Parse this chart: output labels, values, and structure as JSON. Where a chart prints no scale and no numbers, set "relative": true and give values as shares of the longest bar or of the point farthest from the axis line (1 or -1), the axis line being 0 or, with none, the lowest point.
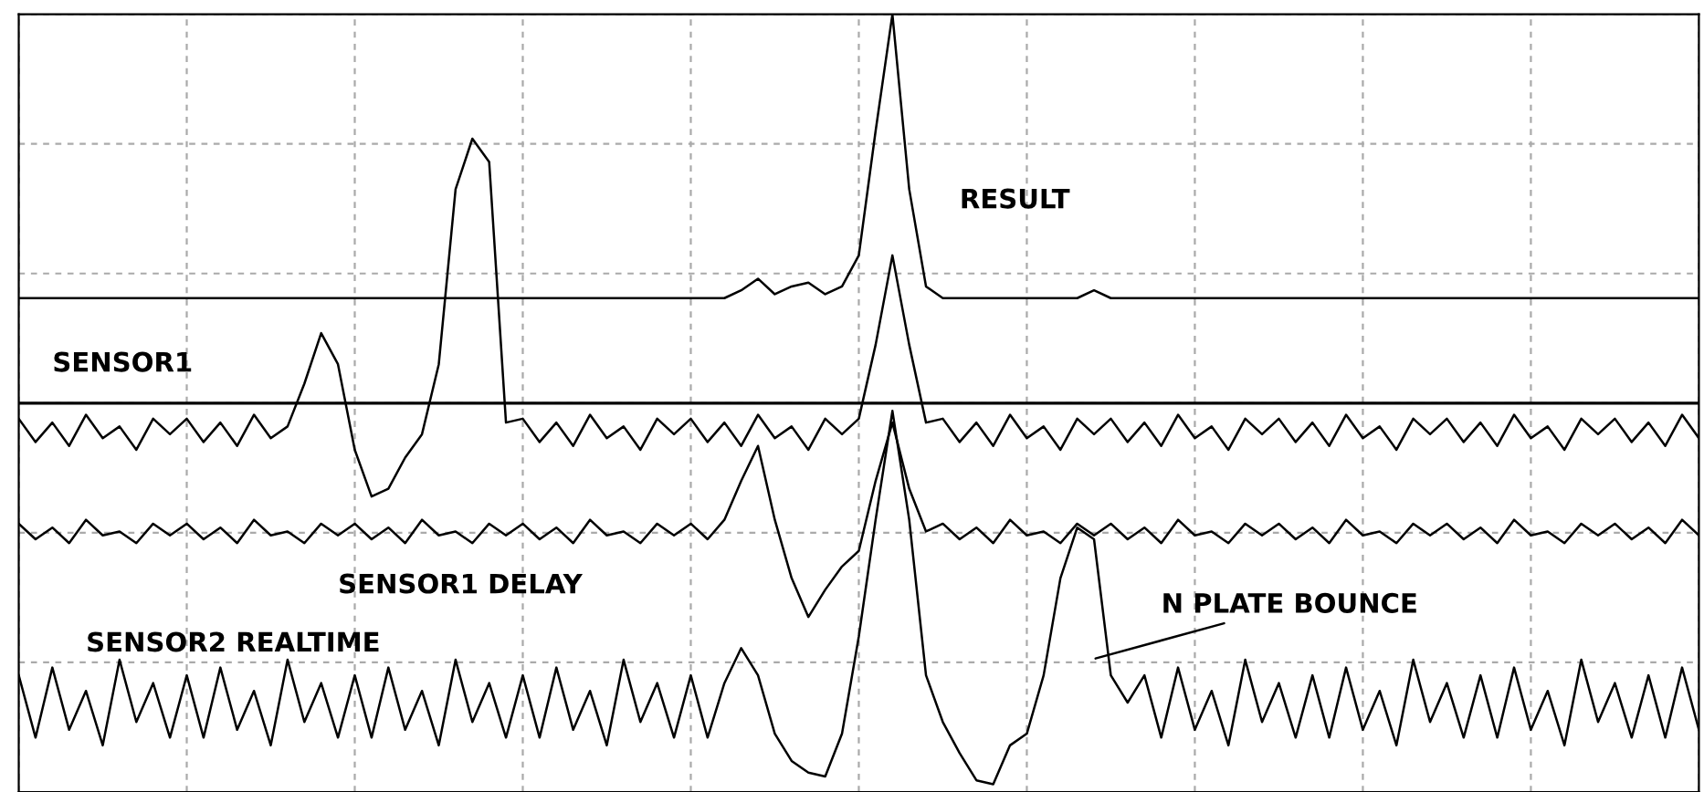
{
  "chart_data": {
    "type": "line",
    "relative": true,
    "grid": true,
    "line_style": "solid",
    "annotations": [
      "N PLATE BOUNCE"
    ],
    "categories": [
      null,
      null,
      null,
      null,
      null,
      null,
      null,
      null,
      null,
      null,
      null,
      null,
      null,
      null,
      null,
      null,
      null,
      null,
      null,
      null,
      null,
      null,
      null,
      null,
      null,
      null,
      null,
      null,
      null,
      null,
      null,
      null,
      null,
      null,
      null,
      null,
      null,
      null,
      null,
      null,
      null,
      null,
      null,
      null,
      null,
      null,
      null,
      null,
      null,
      null,
      null,
      null,
      null,
      null,
      null,
      null,
      null,
      null,
      null,
      null,
      null,
      null,
      null,
      null,
      null,
      null,
      null,
      null,
      null,
      null,
      null,
      null,
      null,
      null,
      null,
      null,
      null,
      null,
      null,
      null,
      null,
      null,
      null,
      null,
      null,
      null,
      null,
      null,
      null,
      null,
      null,
      null,
      null,
      null,
      null,
      null,
      null,
      null,
      null,
      null,
      null
    ],
    "series": [
      {
        "name": "RESULT",
        "color": "#000000",
        "values": [
          0.27,
          0.27,
          0.27,
          0.27,
          0.27,
          0.27,
          0.27,
          0.27,
          0.27,
          0.27,
          0.27,
          0.27,
          0.27,
          0.27,
          0.27,
          0.27,
          0.27,
          0.27,
          0.27,
          0.27,
          0.27,
          0.27,
          0.27,
          0.27,
          0.27,
          0.27,
          0.27,
          0.27,
          0.27,
          0.27,
          0.27,
          0.27,
          0.27,
          0.27,
          0.27,
          0.27,
          0.27,
          0.27,
          0.27,
          0.27,
          0.27,
          0.27,
          0.27,
          0.29,
          0.32,
          0.28,
          0.3,
          0.31,
          0.28,
          0.3,
          0.38,
          0.7,
          1.0,
          0.55,
          0.3,
          0.27,
          0.27,
          0.27,
          0.27,
          0.27,
          0.27,
          0.27,
          0.27,
          0.27,
          0.29,
          0.27,
          0.27,
          0.27,
          0.27,
          0.27,
          0.27,
          0.27,
          0.27,
          0.27,
          0.27,
          0.27,
          0.27,
          0.27,
          0.27,
          0.27,
          0.27,
          0.27,
          0.27,
          0.27,
          0.27,
          0.27,
          0.27,
          0.27,
          0.27,
          0.27,
          0.27,
          0.27,
          0.27,
          0.27,
          0.27,
          0.27,
          0.27,
          0.27,
          0.27,
          0.27,
          0.27
        ]
      },
      {
        "name": "SENSOR1",
        "color": "#000000",
        "values": [
          -0.04,
          -0.1,
          -0.05,
          -0.11,
          -0.03,
          -0.09,
          -0.06,
          -0.12,
          -0.04,
          -0.08,
          -0.04,
          -0.1,
          -0.05,
          -0.11,
          -0.03,
          -0.09,
          -0.06,
          0.05,
          0.18,
          0.1,
          -0.12,
          -0.24,
          -0.22,
          -0.14,
          -0.08,
          0.1,
          0.55,
          0.68,
          0.62,
          -0.05,
          -0.04,
          -0.1,
          -0.05,
          -0.11,
          -0.03,
          -0.09,
          -0.06,
          -0.12,
          -0.04,
          -0.08,
          -0.04,
          -0.1,
          -0.05,
          -0.11,
          -0.03,
          -0.09,
          -0.06,
          -0.12,
          -0.04,
          -0.08,
          -0.04,
          0.15,
          0.38,
          0.15,
          -0.05,
          -0.04,
          -0.1,
          -0.05,
          -0.11,
          -0.03,
          -0.09,
          -0.06,
          -0.12,
          -0.04,
          -0.08,
          -0.04,
          -0.1,
          -0.05,
          -0.11,
          -0.03,
          -0.09,
          -0.06,
          -0.12,
          -0.04,
          -0.08,
          -0.04,
          -0.1,
          -0.05,
          -0.11,
          -0.03,
          -0.09,
          -0.06,
          -0.12,
          -0.04,
          -0.08,
          -0.04,
          -0.1,
          -0.05,
          -0.11,
          -0.03,
          -0.09,
          -0.06,
          -0.12,
          -0.04,
          -0.08,
          -0.04,
          -0.1,
          -0.05,
          -0.11,
          -0.03,
          -0.09
        ]
      },
      {
        "name": "SENSOR1 DELAY",
        "color": "#000000",
        "values": [
          -0.31,
          -0.35,
          -0.32,
          -0.36,
          -0.3,
          -0.34,
          -0.33,
          -0.36,
          -0.31,
          -0.34,
          -0.31,
          -0.35,
          -0.32,
          -0.36,
          -0.3,
          -0.34,
          -0.33,
          -0.36,
          -0.31,
          -0.34,
          -0.31,
          -0.35,
          -0.32,
          -0.36,
          -0.3,
          -0.34,
          -0.33,
          -0.36,
          -0.31,
          -0.34,
          -0.31,
          -0.35,
          -0.32,
          -0.36,
          -0.3,
          -0.34,
          -0.33,
          -0.36,
          -0.31,
          -0.34,
          -0.31,
          -0.35,
          -0.3,
          -0.2,
          -0.11,
          -0.3,
          -0.45,
          -0.55,
          -0.48,
          -0.42,
          -0.38,
          -0.2,
          -0.05,
          -0.22,
          -0.33,
          -0.31,
          -0.35,
          -0.32,
          -0.36,
          -0.3,
          -0.34,
          -0.33,
          -0.36,
          -0.31,
          -0.34,
          -0.31,
          -0.35,
          -0.32,
          -0.36,
          -0.3,
          -0.34,
          -0.33,
          -0.36,
          -0.31,
          -0.34,
          -0.31,
          -0.35,
          -0.32,
          -0.36,
          -0.3,
          -0.34,
          -0.33,
          -0.36,
          -0.31,
          -0.34,
          -0.31,
          -0.35,
          -0.32,
          -0.36,
          -0.3,
          -0.34,
          -0.33,
          -0.36,
          -0.31,
          -0.34,
          -0.31,
          -0.35,
          -0.32,
          -0.36,
          -0.3,
          -0.34
        ]
      },
      {
        "name": "SENSOR2 REALTIME",
        "color": "#000000",
        "values": [
          -0.7,
          -0.86,
          -0.68,
          -0.84,
          -0.74,
          -0.88,
          -0.66,
          -0.82,
          -0.72,
          -0.86,
          -0.7,
          -0.86,
          -0.68,
          -0.84,
          -0.74,
          -0.88,
          -0.66,
          -0.82,
          -0.72,
          -0.86,
          -0.7,
          -0.86,
          -0.68,
          -0.84,
          -0.74,
          -0.88,
          -0.66,
          -0.82,
          -0.72,
          -0.86,
          -0.7,
          -0.86,
          -0.68,
          -0.84,
          -0.74,
          -0.88,
          -0.66,
          -0.82,
          -0.72,
          -0.86,
          -0.7,
          -0.86,
          -0.72,
          -0.63,
          -0.7,
          -0.85,
          -0.92,
          -0.95,
          -0.96,
          -0.85,
          -0.6,
          -0.3,
          -0.02,
          -0.3,
          -0.7,
          -0.82,
          -0.9,
          -0.97,
          -0.98,
          -0.88,
          -0.85,
          -0.7,
          -0.45,
          -0.32,
          -0.35,
          -0.7,
          -0.77,
          -0.7,
          -0.86,
          -0.68,
          -0.84,
          -0.74,
          -0.88,
          -0.66,
          -0.82,
          -0.72,
          -0.86,
          -0.7,
          -0.86,
          -0.68,
          -0.84,
          -0.74,
          -0.88,
          -0.66,
          -0.82,
          -0.72,
          -0.86,
          -0.7,
          -0.86,
          -0.68,
          -0.84,
          -0.74,
          -0.88,
          -0.66,
          -0.82,
          -0.72,
          -0.86,
          -0.7,
          -0.86,
          -0.68,
          -0.84
        ]
      }
    ]
  }
}
